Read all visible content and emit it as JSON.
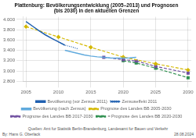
{
  "chart_data": {
    "type": "line",
    "title": [
      "Plattenburg: Bevölkerungsentwicklung (2005–2013) und Prognosen",
      "(bis 2030) in den aktuellen Grenzen"
    ],
    "annotations": [
      "By: Hans G. Oberlack",
      "Quellen: Amt fur Statistik Berlin-Brandenburg, Landesamt fur Bauen und Verkehr",
      "28.08.2024"
    ],
    "xlim": [
      2004.5,
      2030.5
    ],
    "ylim": [
      2800,
      4050
    ],
    "xticks": [
      2005,
      2010,
      2015,
      2020,
      2025,
      2030
    ],
    "yticks": [
      {
        "value": 2800,
        "label": "2.800"
      },
      {
        "value": 3000,
        "label": "3.000"
      },
      {
        "value": 3200,
        "label": "3.200"
      },
      {
        "value": 3400,
        "label": "3.400"
      },
      {
        "value": 3600,
        "label": "3.600"
      },
      {
        "value": 3800,
        "label": "3.800"
      },
      {
        "value": 4000,
        "label": "4.000"
      }
    ],
    "grid": true,
    "legend": "bottom",
    "series": [
      {
        "name": "Bevölkerung (vor Zensus 2011)",
        "color": "#2060b0",
        "line_style": "solid",
        "marker": "none",
        "x": [
          2005,
          2006,
          2007,
          2008,
          2009,
          2010,
          2011
        ],
        "values": [
          3960,
          3870,
          3780,
          3700,
          3630,
          3565,
          3500
        ]
      },
      {
        "name": "Zensuseffekt 2011",
        "color": "#2060b0",
        "line_style": "dotted",
        "marker": "none",
        "x": [
          2010,
          2011,
          2012,
          2013
        ],
        "values": [
          3565,
          3500,
          3470,
          3430
        ]
      },
      {
        "name": "Bevölkerung (nach Zensus)",
        "color": "#60aadd",
        "line_style": "solid",
        "marker": "none",
        "x": [
          2011,
          2012,
          2013,
          2014,
          2015,
          2016,
          2017,
          2018,
          2019,
          2020,
          2021,
          2022
        ],
        "values": [
          3400,
          3370,
          3340,
          3310,
          3290,
          3275,
          3265,
          3255,
          3250,
          3250,
          3255,
          3265
        ]
      },
      {
        "name": "Prognose des Landes BB 2005-2030",
        "color": "#d4b800",
        "line_style": "dashed",
        "marker": "diamond",
        "x": [
          2005,
          2010,
          2015,
          2020,
          2025,
          2030
        ],
        "values": [
          3860,
          3660,
          3460,
          3270,
          3140,
          3020
        ]
      },
      {
        "name": "Prognose des Landes BB 2017-2030",
        "color": "#7050a0",
        "line_style": "dashed",
        "marker": "square",
        "x": [
          2017,
          2020,
          2022,
          2025,
          2030
        ],
        "values": [
          3265,
          3220,
          3195,
          3090,
          2960
        ]
      },
      {
        "name": "= Prognose des Landes BB 2020-2030",
        "color": "#309050",
        "line_style": "dashed",
        "marker": "square",
        "x": [
          2020,
          2022,
          2025,
          2030
        ],
        "values": [
          3200,
          3155,
          3055,
          2870
        ]
      }
    ]
  }
}
